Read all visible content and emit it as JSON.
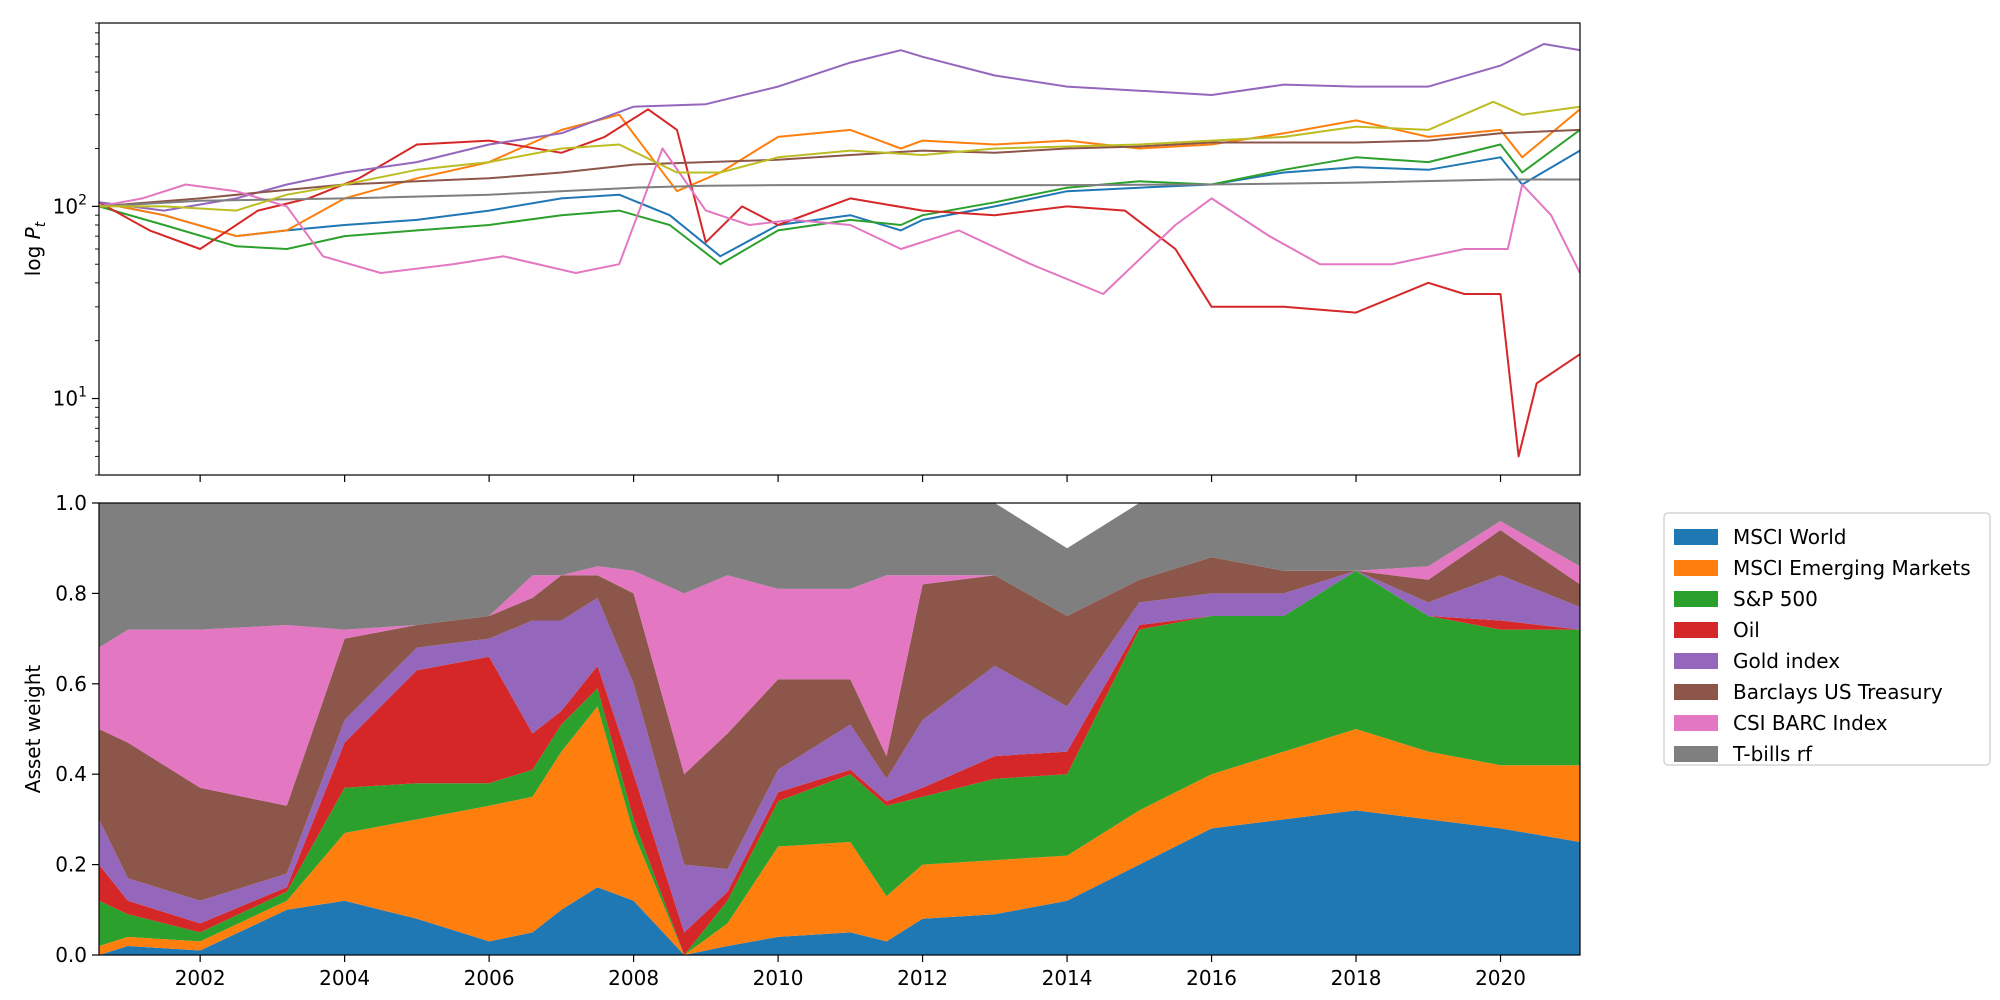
{
  "chart_data": [
    {
      "type": "line",
      "ylabel": "log P_t",
      "yscale": "log",
      "ylim": [
        4,
        900
      ],
      "xlim": [
        2000.6,
        2021.1
      ],
      "x_ticks": [
        2002,
        2004,
        2006,
        2008,
        2010,
        2012,
        2014,
        2016,
        2018,
        2020
      ],
      "y_ticks": [
        {
          "value": 10,
          "label": "10",
          "exp": "1"
        },
        {
          "value": 100,
          "label": "10",
          "exp": "2"
        }
      ],
      "grid": false,
      "series": [
        {
          "name": "MSCI World",
          "color": "#1f77b4",
          "x": [
            2000.6,
            2001.5,
            2002.5,
            2003.2,
            2004,
            2005,
            2006,
            2007,
            2007.8,
            2008.5,
            2009.2,
            2010,
            2011,
            2011.7,
            2012,
            2013,
            2014,
            2015,
            2016,
            2017,
            2018,
            2019,
            2020,
            2020.3,
            2021.1
          ],
          "y": [
            105,
            90,
            70,
            75,
            80,
            85,
            95,
            110,
            115,
            90,
            55,
            80,
            90,
            75,
            85,
            100,
            120,
            125,
            130,
            150,
            160,
            155,
            180,
            130,
            195
          ]
        },
        {
          "name": "MSCI Emerging Markets",
          "color": "#ff7f0e",
          "x": [
            2000.6,
            2001.5,
            2002.5,
            2003.2,
            2004,
            2005,
            2006,
            2007,
            2007.8,
            2008.6,
            2009.2,
            2010,
            2011,
            2011.7,
            2012,
            2013,
            2014,
            2015,
            2016,
            2017,
            2018,
            2019,
            2020,
            2020.3,
            2021.1
          ],
          "y": [
            105,
            90,
            70,
            75,
            110,
            140,
            170,
            250,
            300,
            120,
            150,
            230,
            250,
            200,
            220,
            210,
            220,
            200,
            210,
            240,
            280,
            230,
            250,
            180,
            320
          ]
        },
        {
          "name": "S&P 500",
          "color": "#2ca02c",
          "x": [
            2000.6,
            2001.5,
            2002.5,
            2003.2,
            2004,
            2005,
            2006,
            2007,
            2007.8,
            2008.5,
            2009.2,
            2010,
            2011,
            2011.7,
            2012,
            2013,
            2014,
            2015,
            2016,
            2017,
            2018,
            2019,
            2020,
            2020.3,
            2021.1
          ],
          "y": [
            100,
            80,
            62,
            60,
            70,
            75,
            80,
            90,
            95,
            80,
            50,
            75,
            85,
            80,
            90,
            105,
            125,
            135,
            130,
            155,
            180,
            170,
            210,
            150,
            250
          ]
        },
        {
          "name": "Oil",
          "color": "#d62728",
          "x": [
            2000.6,
            2001.3,
            2002,
            2002.8,
            2003.5,
            2004.2,
            2005,
            2006,
            2007,
            2007.6,
            2008.2,
            2008.6,
            2009,
            2009.5,
            2010,
            2011,
            2012,
            2013,
            2014,
            2014.8,
            2015.5,
            2016,
            2017,
            2018,
            2019,
            2019.5,
            2020,
            2020.25,
            2020.5,
            2021.1
          ],
          "y": [
            105,
            75,
            60,
            95,
            110,
            140,
            210,
            220,
            190,
            230,
            320,
            250,
            65,
            100,
            80,
            110,
            95,
            90,
            100,
            95,
            60,
            30,
            30,
            28,
            40,
            35,
            35,
            5,
            12,
            17
          ]
        },
        {
          "name": "Gold index",
          "color": "#9467bd",
          "x": [
            2000.6,
            2001.5,
            2002.5,
            2003.2,
            2004,
            2005,
            2006,
            2007,
            2008,
            2009,
            2010,
            2011,
            2011.7,
            2012,
            2013,
            2014,
            2015,
            2016,
            2017,
            2018,
            2019,
            2020,
            2020.6,
            2021.1
          ],
          "y": [
            105,
            95,
            110,
            130,
            150,
            170,
            210,
            240,
            330,
            340,
            420,
            560,
            650,
            600,
            480,
            420,
            400,
            380,
            430,
            420,
            420,
            540,
            700,
            650
          ]
        },
        {
          "name": "Barclays US Treasury",
          "color": "#8c564b",
          "x": [
            2000.6,
            2002,
            2003,
            2004,
            2005,
            2006,
            2007,
            2008,
            2009,
            2010,
            2011,
            2012,
            2013,
            2014,
            2015,
            2016,
            2017,
            2018,
            2019,
            2020,
            2021.1
          ],
          "y": [
            100,
            110,
            120,
            130,
            135,
            140,
            150,
            165,
            170,
            175,
            185,
            195,
            190,
            200,
            205,
            215,
            215,
            215,
            220,
            240,
            250
          ]
        },
        {
          "name": "CSI BARC Index",
          "color": "#e377c2",
          "x": [
            2000.6,
            2001.2,
            2001.8,
            2002.5,
            2003.2,
            2003.7,
            2004.5,
            2005.5,
            2006.2,
            2007.2,
            2007.8,
            2008.4,
            2009,
            2009.6,
            2010.2,
            2011,
            2011.7,
            2012.5,
            2013.5,
            2014.5,
            2015.5,
            2016,
            2016.8,
            2017.5,
            2018.5,
            2019.5,
            2020.1,
            2020.3,
            2020.7,
            2021.1
          ],
          "y": [
            100,
            110,
            130,
            120,
            100,
            55,
            45,
            50,
            55,
            45,
            50,
            200,
            95,
            80,
            85,
            80,
            60,
            75,
            50,
            35,
            80,
            110,
            70,
            50,
            50,
            60,
            60,
            130,
            90,
            45
          ]
        },
        {
          "name": "T-bills rf",
          "color": "#7f7f7f",
          "x": [
            2000.6,
            2002,
            2004,
            2006,
            2008,
            2009,
            2010,
            2012,
            2014,
            2016,
            2018,
            2020,
            2021.1
          ],
          "y": [
            100,
            107,
            110,
            115,
            125,
            128,
            129,
            129,
            129,
            130,
            133,
            138,
            138
          ]
        },
        {
          "name": "",
          "color": "#bcbd22",
          "x": [
            2000.6,
            2001.5,
            2002.5,
            2003.2,
            2004,
            2005,
            2006,
            2007,
            2007.8,
            2008.6,
            2009.2,
            2010,
            2011,
            2012,
            2013,
            2014,
            2015,
            2016,
            2017,
            2018,
            2019,
            2019.9,
            2020.3,
            2021.1
          ],
          "y": [
            100,
            100,
            95,
            115,
            130,
            155,
            170,
            200,
            210,
            150,
            150,
            180,
            195,
            185,
            200,
            205,
            210,
            220,
            230,
            260,
            250,
            350,
            300,
            330
          ]
        }
      ]
    },
    {
      "type": "area",
      "ylabel": "Asset weight",
      "ylim": [
        0.0,
        1.0
      ],
      "xlim": [
        2000.6,
        2021.1
      ],
      "x_ticks": [
        2002,
        2004,
        2006,
        2008,
        2010,
        2012,
        2014,
        2016,
        2018,
        2020
      ],
      "y_ticks": [
        "0.0",
        "0.2",
        "0.4",
        "0.6",
        "0.8",
        "1.0"
      ],
      "legend_position": "outside-right",
      "x": [
        2000.6,
        2001,
        2002,
        2003.2,
        2004,
        2005,
        2006,
        2006.6,
        2007,
        2007.5,
        2008,
        2008.7,
        2009.3,
        2010,
        2011,
        2011.5,
        2012,
        2013,
        2014,
        2015,
        2016,
        2017,
        2018,
        2019,
        2020,
        2021.1
      ],
      "series": [
        {
          "name": "MSCI World",
          "color": "#1f77b4",
          "values": [
            0.0,
            0.02,
            0.01,
            0.1,
            0.12,
            0.08,
            0.03,
            0.05,
            0.1,
            0.15,
            0.12,
            0.0,
            0.02,
            0.04,
            0.05,
            0.03,
            0.08,
            0.09,
            0.12,
            0.2,
            0.28,
            0.3,
            0.32,
            0.3,
            0.28,
            0.25
          ]
        },
        {
          "name": "MSCI Emerging Markets",
          "color": "#ff7f0e",
          "values": [
            0.02,
            0.02,
            0.02,
            0.02,
            0.15,
            0.22,
            0.3,
            0.3,
            0.35,
            0.4,
            0.15,
            0.0,
            0.05,
            0.2,
            0.2,
            0.1,
            0.12,
            0.12,
            0.1,
            0.12,
            0.12,
            0.15,
            0.18,
            0.15,
            0.14,
            0.17
          ]
        },
        {
          "name": "S&P 500",
          "color": "#2ca02c",
          "values": [
            0.1,
            0.05,
            0.02,
            0.02,
            0.1,
            0.08,
            0.05,
            0.06,
            0.06,
            0.04,
            0.03,
            0.0,
            0.05,
            0.1,
            0.15,
            0.2,
            0.15,
            0.18,
            0.18,
            0.4,
            0.35,
            0.3,
            0.35,
            0.3,
            0.3,
            0.3
          ]
        },
        {
          "name": "Oil",
          "color": "#d62728",
          "values": [
            0.08,
            0.03,
            0.02,
            0.01,
            0.1,
            0.25,
            0.28,
            0.08,
            0.03,
            0.05,
            0.1,
            0.05,
            0.02,
            0.02,
            0.01,
            0.01,
            0.02,
            0.05,
            0.05,
            0.01,
            0.0,
            0.0,
            0.0,
            0.0,
            0.02,
            0.0
          ]
        },
        {
          "name": "Gold index",
          "color": "#9467bd",
          "values": [
            0.1,
            0.05,
            0.05,
            0.03,
            0.05,
            0.05,
            0.04,
            0.25,
            0.2,
            0.15,
            0.2,
            0.15,
            0.05,
            0.05,
            0.1,
            0.05,
            0.15,
            0.2,
            0.1,
            0.05,
            0.05,
            0.05,
            0.0,
            0.03,
            0.1,
            0.05
          ]
        },
        {
          "name": "Barclays US Treasury",
          "color": "#8c564b",
          "values": [
            0.2,
            0.3,
            0.25,
            0.15,
            0.18,
            0.05,
            0.05,
            0.05,
            0.1,
            0.05,
            0.2,
            0.2,
            0.3,
            0.2,
            0.1,
            0.05,
            0.3,
            0.2,
            0.2,
            0.05,
            0.08,
            0.05,
            0.0,
            0.05,
            0.1,
            0.05
          ]
        },
        {
          "name": "CSI BARC Index",
          "color": "#e377c2",
          "values": [
            0.18,
            0.25,
            0.35,
            0.4,
            0.02,
            0.0,
            0.0,
            0.05,
            0.0,
            0.02,
            0.05,
            0.4,
            0.35,
            0.2,
            0.2,
            0.4,
            0.02,
            0.0,
            0.0,
            0.0,
            0.0,
            0.0,
            0.0,
            0.03,
            0.02,
            0.04
          ]
        },
        {
          "name": "T-bills rf",
          "color": "#7f7f7f",
          "values": [
            0.32,
            0.28,
            0.28,
            0.27,
            0.28,
            0.27,
            0.25,
            0.16,
            0.16,
            0.14,
            0.15,
            0.2,
            0.16,
            0.19,
            0.19,
            0.16,
            0.17,
            0.16,
            0.15,
            0.17,
            0.12,
            0.15,
            0.15,
            0.14,
            0.14,
            0.14
          ]
        }
      ]
    }
  ]
}
